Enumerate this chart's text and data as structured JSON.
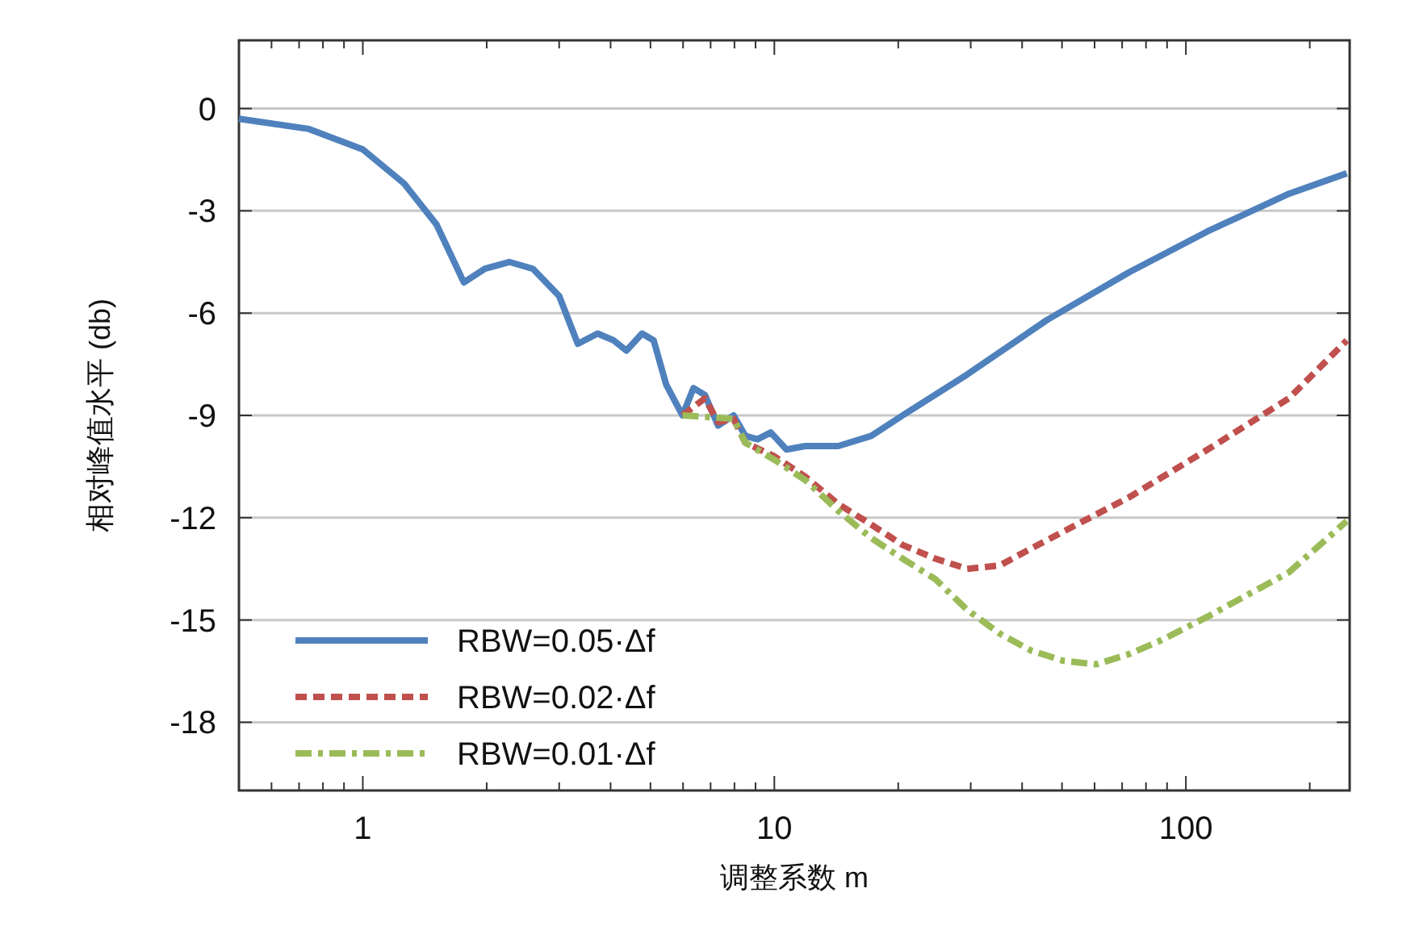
{
  "chart_data": {
    "type": "line",
    "xlabel": "调整系数 m",
    "ylabel": "相对峰值水平 (db)",
    "log": "x",
    "grid": "y",
    "legend": "bottom left",
    "xlim": [
      0.5,
      250
    ],
    "xticks": [
      1,
      10,
      100
    ],
    "ylim": [
      -20,
      2
    ],
    "yticks": [
      0,
      -3,
      -6,
      -9,
      -12,
      -15,
      -18
    ],
    "series": [
      {
        "name": "RBW=0.05·Δf",
        "color": "#4f81bd",
        "line_style": "solid",
        "x": [
          0.5,
          0.74,
          1,
          1.26,
          1.51,
          1.76,
          1.98,
          2.27,
          2.59,
          3.0,
          3.33,
          3.72,
          4.07,
          4.37,
          4.77,
          5.09,
          5.46,
          5.98,
          6.36,
          6.78,
          7.3,
          7.96,
          8.5,
          9.1,
          9.8,
          10.7,
          11.9,
          14.3,
          17.2,
          20.5,
          29.4,
          46,
          72.8,
          113,
          178,
          246
        ],
        "values": [
          -0.3,
          -0.6,
          -1.2,
          -2.2,
          -3.4,
          -5.1,
          -4.7,
          -4.5,
          -4.7,
          -5.5,
          -6.9,
          -6.6,
          -6.8,
          -7.1,
          -6.6,
          -6.8,
          -8.1,
          -9.0,
          -8.2,
          -8.4,
          -9.3,
          -9.0,
          -9.6,
          -9.7,
          -9.5,
          -10.0,
          -9.9,
          -9.9,
          -9.6,
          -9.0,
          -7.8,
          -6.2,
          -4.8,
          -3.6,
          -2.5,
          -1.9
        ]
      },
      {
        "name": "RBW=0.02·Δf",
        "color": "#c0504d",
        "line_style": "dashed",
        "x": [
          5.98,
          6.78,
          7.3,
          7.96,
          8.5,
          10,
          11.9,
          14.3,
          17.2,
          20.5,
          24.6,
          29.4,
          35.3,
          42.1,
          50.5,
          72.8,
          113,
          178,
          246
        ],
        "values": [
          -9.0,
          -8.5,
          -9.2,
          -9.1,
          -9.8,
          -10.2,
          -10.8,
          -11.6,
          -12.2,
          -12.8,
          -13.2,
          -13.5,
          -13.4,
          -12.9,
          -12.4,
          -11.4,
          -10.0,
          -8.5,
          -6.8
        ]
      },
      {
        "name": "RBW=0.01·Δf",
        "color": "#9bbb59",
        "line_style": "dashdot",
        "x": [
          5.98,
          7.96,
          8.5,
          10,
          11.9,
          14.3,
          17.2,
          20.5,
          24.6,
          29.4,
          35.3,
          42.1,
          50.5,
          60.5,
          72.8,
          86.9,
          113,
          178,
          246
        ],
        "values": [
          -9.0,
          -9.1,
          -9.8,
          -10.3,
          -10.9,
          -11.8,
          -12.6,
          -13.2,
          -13.8,
          -14.7,
          -15.4,
          -15.9,
          -16.2,
          -16.3,
          -16.0,
          -15.6,
          -14.9,
          -13.6,
          -12.1
        ]
      }
    ]
  }
}
